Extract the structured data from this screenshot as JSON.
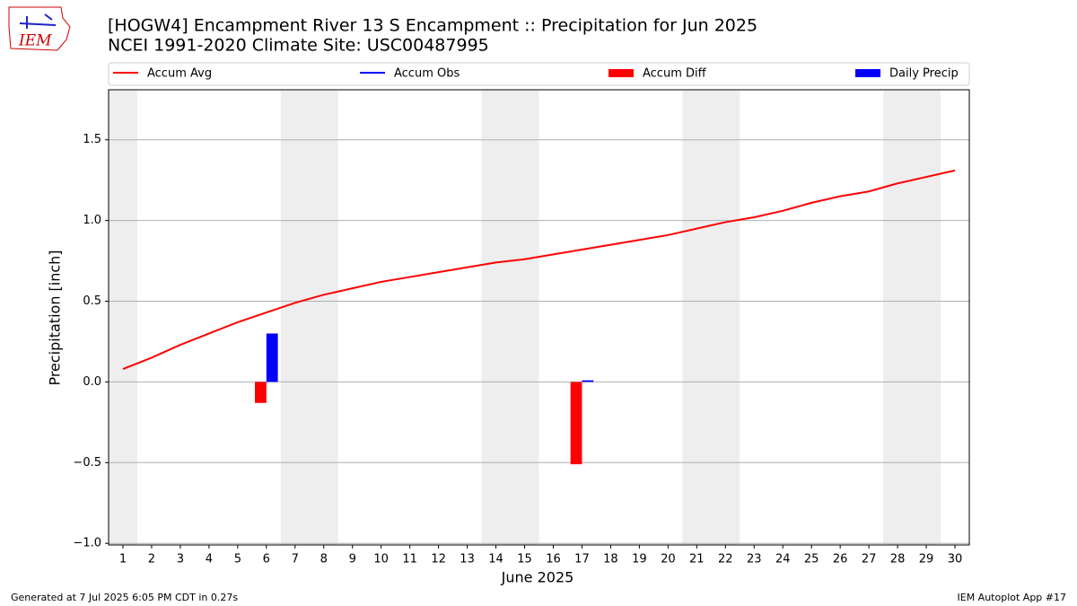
{
  "chart_data": {
    "type": "combo",
    "title": "[HOGW4] Encampment River 13 S Encampment :: Precipitation for Jun 2025",
    "subtitle": "NCEI 1991-2020 Climate Site: USC00487995",
    "xlabel": "June 2025",
    "ylabel": "Precipitation [inch]",
    "logo_text": "IEM",
    "footer_left": "Generated at 7 Jul 2025 6:05 PM CDT in 0.27s",
    "footer_right": "IEM Autoplot App #17",
    "x": [
      1,
      2,
      3,
      4,
      5,
      6,
      7,
      8,
      9,
      10,
      11,
      12,
      13,
      14,
      15,
      16,
      17,
      18,
      19,
      20,
      21,
      22,
      23,
      24,
      25,
      26,
      27,
      28,
      29,
      30
    ],
    "xlim": [
      0.5,
      30.5
    ],
    "xticks": [
      1,
      2,
      3,
      4,
      5,
      6,
      7,
      8,
      9,
      10,
      11,
      12,
      13,
      14,
      15,
      16,
      17,
      18,
      19,
      20,
      21,
      22,
      23,
      24,
      25,
      26,
      27,
      28,
      29,
      30
    ],
    "ylim": [
      -1.01,
      1.81
    ],
    "yticks": [
      {
        "value": -1.0,
        "label": "−1.0"
      },
      {
        "value": -0.5,
        "label": "−0.5"
      },
      {
        "value": 0.0,
        "label": "0.0"
      },
      0.5,
      {
        "value": 1.0,
        "label": "1.0"
      },
      1.5
    ],
    "grid": true,
    "weekend_shading": [
      [
        0.5,
        1.5
      ],
      [
        6.5,
        8.5
      ],
      [
        13.5,
        15.5
      ],
      [
        20.5,
        22.5
      ],
      [
        27.5,
        29.5
      ]
    ],
    "shade_color": "#eeeeee",
    "series": [
      {
        "name": "Accum Avg",
        "kind": "line",
        "color": "#ff0000",
        "values": [
          0.08,
          0.15,
          0.23,
          0.3,
          0.37,
          0.43,
          0.49,
          0.54,
          0.58,
          0.62,
          0.65,
          0.68,
          0.71,
          0.74,
          0.76,
          0.79,
          0.82,
          0.85,
          0.88,
          0.91,
          0.95,
          0.99,
          1.02,
          1.06,
          1.11,
          1.15,
          1.18,
          1.23,
          1.27,
          1.31
        ]
      },
      {
        "name": "Accum Obs",
        "kind": "line",
        "color": "#0000ff",
        "values": [
          null,
          null,
          null,
          null,
          null,
          null,
          null,
          null,
          null,
          null,
          null,
          null,
          null,
          null,
          null,
          null,
          null,
          null,
          null,
          null,
          null,
          null,
          null,
          null,
          null,
          null,
          null,
          null,
          null,
          null
        ]
      },
      {
        "name": "Accum Diff",
        "kind": "bar",
        "offset": -0.2,
        "width": 0.4,
        "color": "#ff0000",
        "values": [
          null,
          null,
          null,
          null,
          null,
          -0.13,
          null,
          null,
          null,
          null,
          null,
          null,
          null,
          null,
          null,
          null,
          -0.51,
          null,
          null,
          null,
          null,
          null,
          null,
          null,
          null,
          null,
          null,
          null,
          null,
          null
        ]
      },
      {
        "name": "Daily Precip",
        "kind": "bar",
        "offset": 0.2,
        "width": 0.4,
        "color": "#0000ff",
        "values": [
          null,
          null,
          null,
          null,
          null,
          0.3,
          null,
          null,
          null,
          null,
          null,
          null,
          null,
          null,
          null,
          null,
          0.01,
          null,
          null,
          null,
          null,
          null,
          null,
          null,
          null,
          null,
          null,
          null,
          null,
          null
        ]
      }
    ]
  }
}
